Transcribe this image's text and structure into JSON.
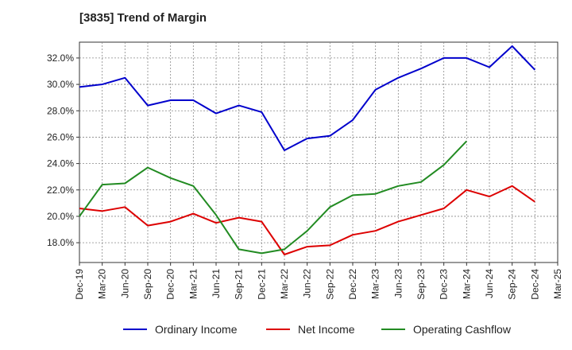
{
  "chart_data": {
    "type": "line",
    "title": "[3835]  Trend of Margin",
    "xlabel": "",
    "ylabel": "",
    "categories": [
      "Dec-19",
      "Mar-20",
      "Jun-20",
      "Sep-20",
      "Dec-20",
      "Mar-21",
      "Jun-21",
      "Sep-21",
      "Dec-21",
      "Mar-22",
      "Jun-22",
      "Sep-22",
      "Dec-22",
      "Mar-23",
      "Jun-23",
      "Sep-23",
      "Dec-23",
      "Mar-24",
      "Jun-24",
      "Sep-24",
      "Dec-24",
      "Mar-25"
    ],
    "ylim": [
      16.5,
      33.2
    ],
    "yticks": [
      18.0,
      20.0,
      22.0,
      24.0,
      26.0,
      28.0,
      30.0,
      32.0
    ],
    "ytick_labels": [
      "18.0%",
      "20.0%",
      "22.0%",
      "24.0%",
      "26.0%",
      "28.0%",
      "30.0%",
      "32.0%"
    ],
    "grid": true,
    "legend_position": "bottom",
    "series": [
      {
        "name": "Ordinary Income",
        "color": "#0000cc",
        "values": [
          29.8,
          30.0,
          30.5,
          28.4,
          28.8,
          28.8,
          27.8,
          28.4,
          27.9,
          25.0,
          25.9,
          26.1,
          27.3,
          29.6,
          30.5,
          31.2,
          32.0,
          32.0,
          31.3,
          32.9,
          31.1,
          null
        ]
      },
      {
        "name": "Net Income",
        "color": "#dd0000",
        "values": [
          20.6,
          20.4,
          20.7,
          19.3,
          19.6,
          20.2,
          19.5,
          19.9,
          19.6,
          17.1,
          17.7,
          17.8,
          18.6,
          18.9,
          19.6,
          20.1,
          20.6,
          22.0,
          21.5,
          22.3,
          21.1,
          null
        ]
      },
      {
        "name": "Operating Cashflow",
        "color": "#228b22",
        "values": [
          20.0,
          22.4,
          22.5,
          23.7,
          22.9,
          22.3,
          20.1,
          17.5,
          17.2,
          17.5,
          18.9,
          20.7,
          21.6,
          21.7,
          22.3,
          22.6,
          23.9,
          25.7,
          null,
          null,
          null,
          null
        ]
      }
    ]
  }
}
